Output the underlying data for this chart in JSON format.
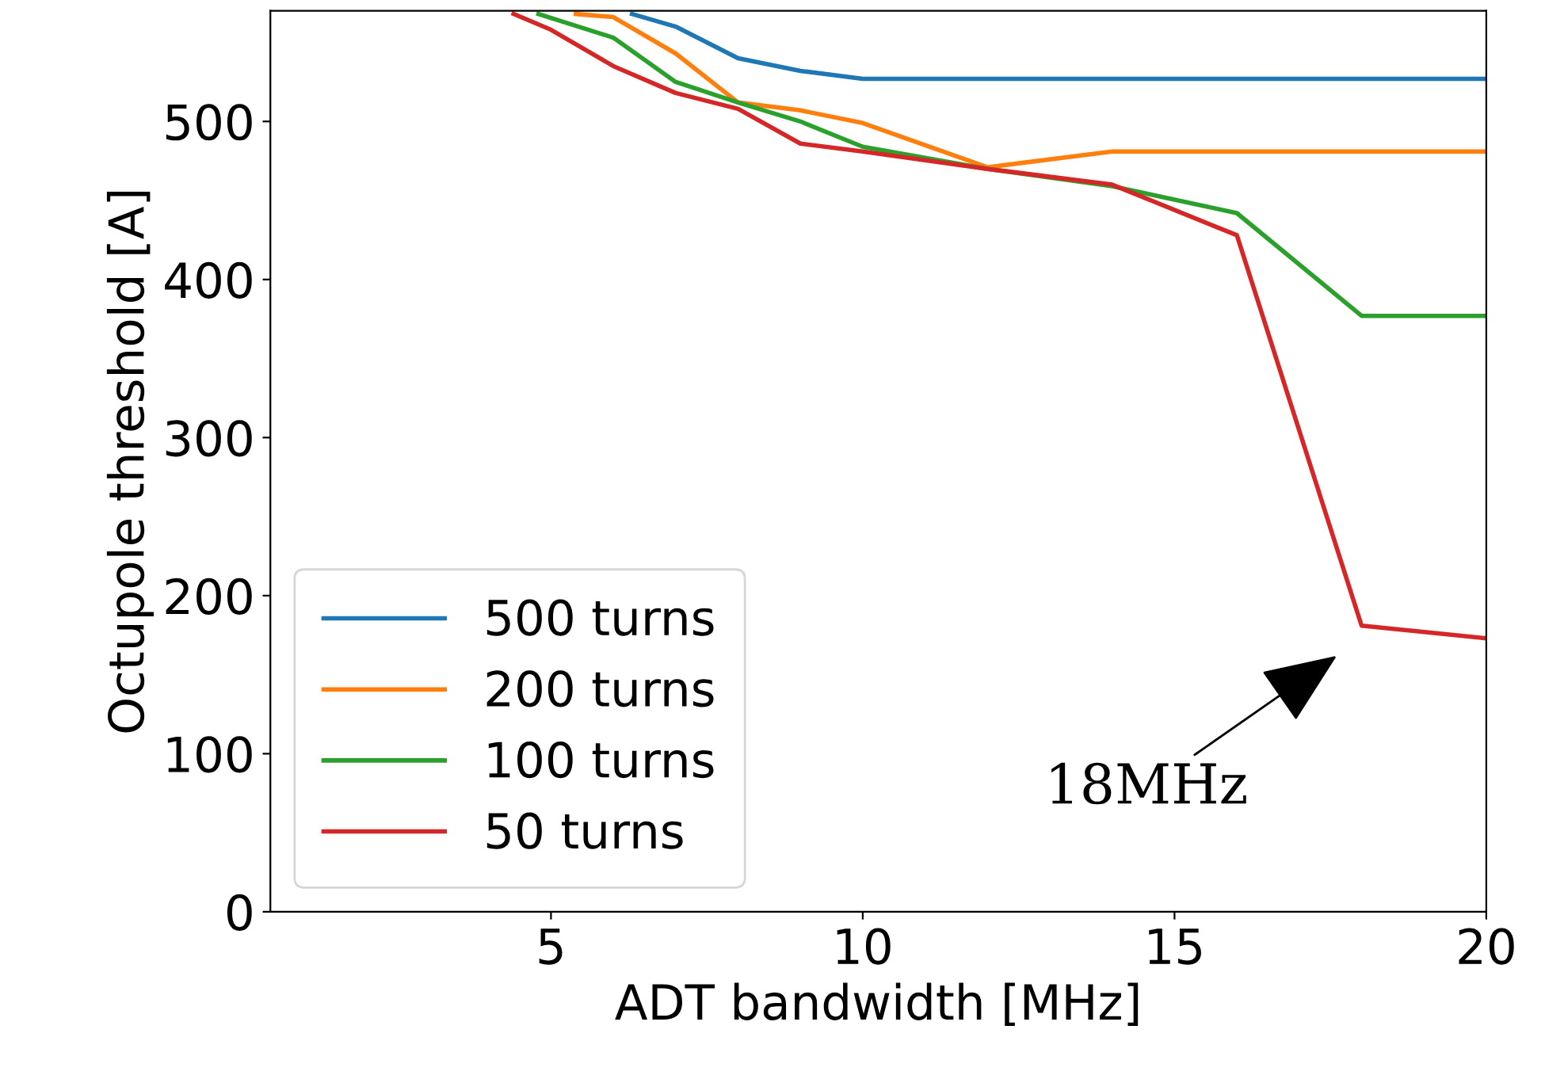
{
  "chart_data": {
    "type": "line",
    "xlabel": "ADT bandwidth [MHz]",
    "ylabel": "Octupole threshold [A]",
    "xlim": [
      0.5,
      20
    ],
    "ylim": [
      0,
      570
    ],
    "xticks": [
      5,
      10,
      15,
      20
    ],
    "yticks": [
      0,
      100,
      200,
      300,
      400,
      500
    ],
    "grid": false,
    "legend": "bottom left",
    "series": [
      {
        "name": "500 turns",
        "color": "#1f77b4",
        "x": [
          6.3,
          7,
          8,
          9,
          10,
          12,
          14,
          16,
          18,
          20
        ],
        "values": [
          568,
          560,
          540,
          532,
          527,
          527,
          527,
          527,
          527,
          527
        ]
      },
      {
        "name": "200 turns",
        "color": "#ff7f0e",
        "x": [
          5.4,
          6,
          7,
          8,
          9,
          10,
          12,
          14,
          16,
          18,
          20
        ],
        "values": [
          568,
          566,
          543,
          512,
          507,
          499,
          471,
          481,
          481,
          481,
          481
        ]
      },
      {
        "name": "100 turns",
        "color": "#2ca02c",
        "x": [
          4.8,
          6,
          7,
          8,
          9,
          10,
          12,
          14,
          16,
          18,
          20
        ],
        "values": [
          568,
          553,
          525,
          512,
          500,
          484,
          470,
          459,
          442,
          377,
          377
        ]
      },
      {
        "name": "50 turns",
        "color": "#d62728",
        "x": [
          4.4,
          5,
          6,
          7,
          8,
          9,
          10,
          12,
          14,
          16,
          18,
          20
        ],
        "values": [
          568,
          558,
          535,
          518,
          508,
          486,
          481,
          470,
          460,
          428,
          181,
          173
        ]
      }
    ],
    "annotations": [
      "18MHz"
    ]
  }
}
